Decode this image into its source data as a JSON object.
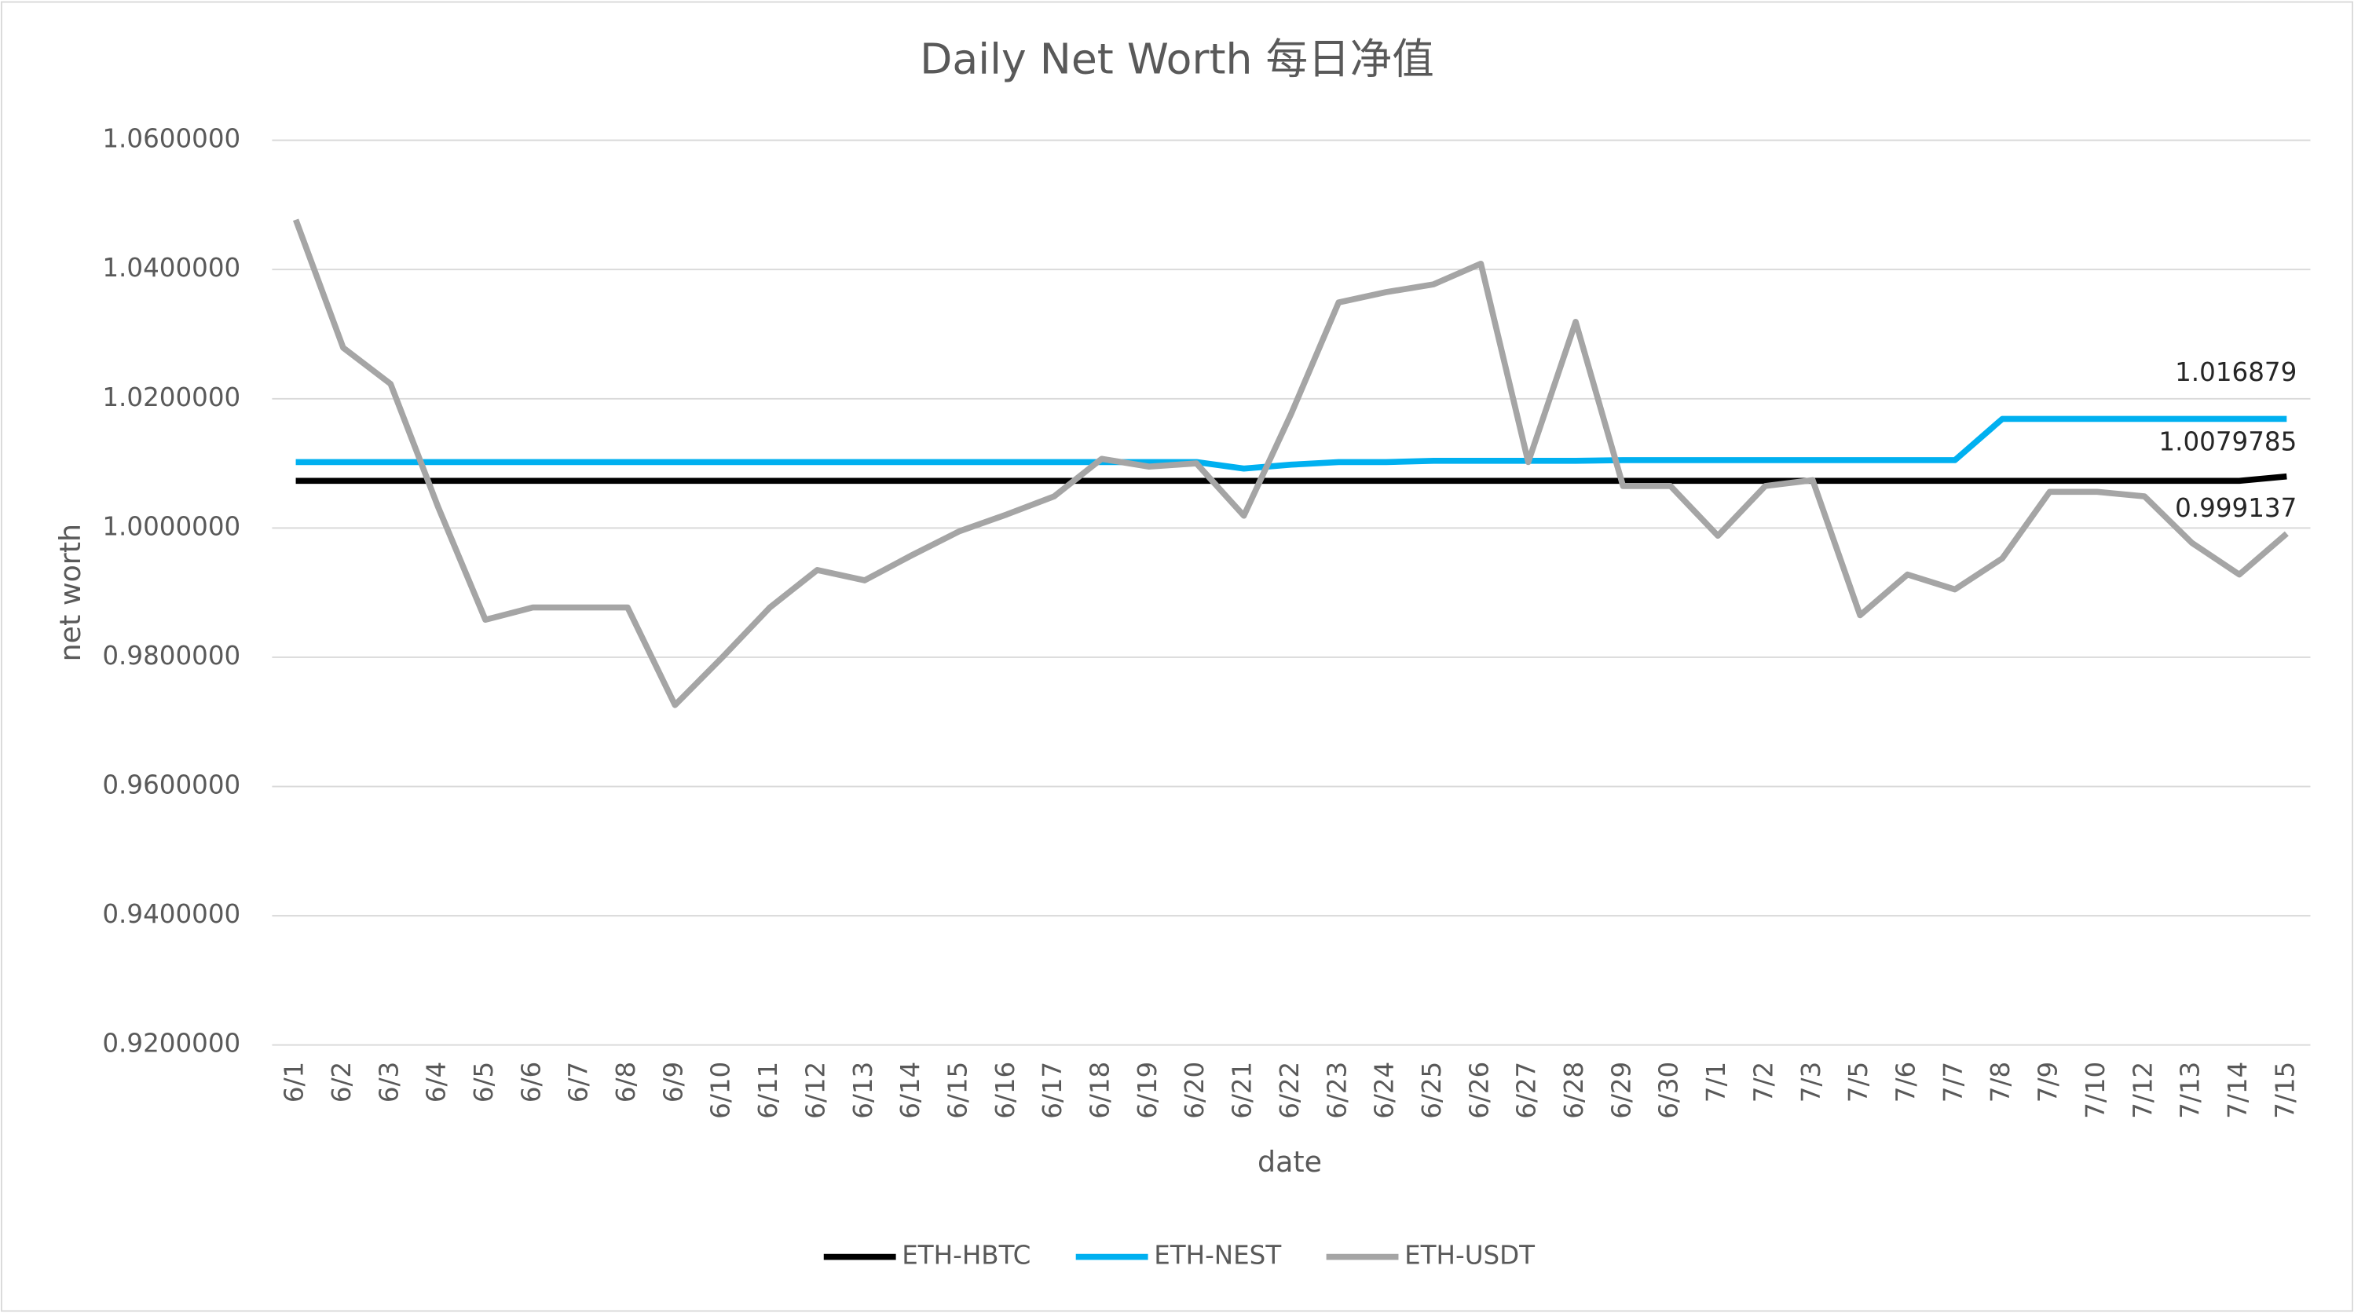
{
  "chart_data": {
    "type": "line",
    "title": "Daily Net Worth 每日净值",
    "x_label": "date",
    "y_label": "net worth",
    "categories": [
      "6/1",
      "6/2",
      "6/3",
      "6/4",
      "6/5",
      "6/6",
      "6/7",
      "6/8",
      "6/9",
      "6/10",
      "6/11",
      "6/12",
      "6/13",
      "6/14",
      "6/15",
      "6/16",
      "6/17",
      "6/18",
      "6/19",
      "6/20",
      "6/21",
      "6/22",
      "6/23",
      "6/24",
      "6/25",
      "6/26",
      "6/27",
      "6/28",
      "6/29",
      "6/30",
      "7/1",
      "7/2",
      "7/3",
      "7/5",
      "7/6",
      "7/7",
      "7/8",
      "7/9",
      "7/10",
      "7/12",
      "7/13",
      "7/14",
      "7/15"
    ],
    "series": [
      {
        "name": "ETH-HBTC",
        "color": "#000000",
        "values": [
          1.0073,
          1.0073,
          1.0073,
          1.0073,
          1.0073,
          1.0073,
          1.0073,
          1.0073,
          1.0073,
          1.0073,
          1.0073,
          1.0073,
          1.0073,
          1.0073,
          1.0073,
          1.0073,
          1.0073,
          1.0073,
          1.0073,
          1.0073,
          1.0073,
          1.0073,
          1.0073,
          1.0073,
          1.0073,
          1.0073,
          1.0073,
          1.0073,
          1.0073,
          1.0073,
          1.0073,
          1.0073,
          1.0073,
          1.0073,
          1.0073,
          1.0073,
          1.0073,
          1.0073,
          1.0073,
          1.0073,
          1.0073,
          1.0073,
          1.0079785
        ]
      },
      {
        "name": "ETH-NEST",
        "color": "#00b0f0",
        "values": [
          1.0102,
          1.0102,
          1.0102,
          1.0102,
          1.0102,
          1.0102,
          1.0102,
          1.0102,
          1.0102,
          1.0102,
          1.0102,
          1.0102,
          1.0102,
          1.0102,
          1.0102,
          1.0102,
          1.0102,
          1.0102,
          1.0102,
          1.0102,
          1.0092,
          1.0098,
          1.0102,
          1.0102,
          1.0104,
          1.0104,
          1.0104,
          1.0104,
          1.0105,
          1.0105,
          1.0105,
          1.0105,
          1.0105,
          1.0105,
          1.0105,
          1.0105,
          1.016879,
          1.016879,
          1.016879,
          1.016879,
          1.016879,
          1.016879,
          1.016879
        ]
      },
      {
        "name": "ETH-USDT",
        "color": "#a5a5a5",
        "values": [
          1.0477,
          1.0279,
          1.0223,
          1.0033,
          0.9858,
          0.9877,
          0.9877,
          0.9877,
          0.9726,
          0.98,
          0.9877,
          0.9935,
          0.9919,
          0.9958,
          0.9995,
          1.0021,
          1.0049,
          1.0107,
          1.0095,
          1.01,
          1.0019,
          1.0177,
          1.0349,
          1.0365,
          1.0377,
          1.0409,
          1.0102,
          1.0319,
          1.0065,
          1.0065,
          0.9988,
          1.0065,
          1.0074,
          0.9865,
          0.9928,
          0.9905,
          0.9953,
          1.0056,
          1.0056,
          1.0049,
          0.9977,
          0.9928,
          0.999137
        ]
      }
    ],
    "ylim": [
      0.92,
      1.06
    ],
    "yticks": [
      {
        "value": 0.92,
        "label": "0.9200000"
      },
      {
        "value": 0.94,
        "label": "0.9400000"
      },
      {
        "value": 0.96,
        "label": "0.9600000"
      },
      {
        "value": 0.98,
        "label": "0.9800000"
      },
      {
        "value": 1.0,
        "label": "1.0000000"
      },
      {
        "value": 1.02,
        "label": "1.0200000"
      },
      {
        "value": 1.04,
        "label": "1.0400000"
      },
      {
        "value": 1.06,
        "label": "1.0600000"
      }
    ],
    "grid": true,
    "legend": "bottom"
  }
}
